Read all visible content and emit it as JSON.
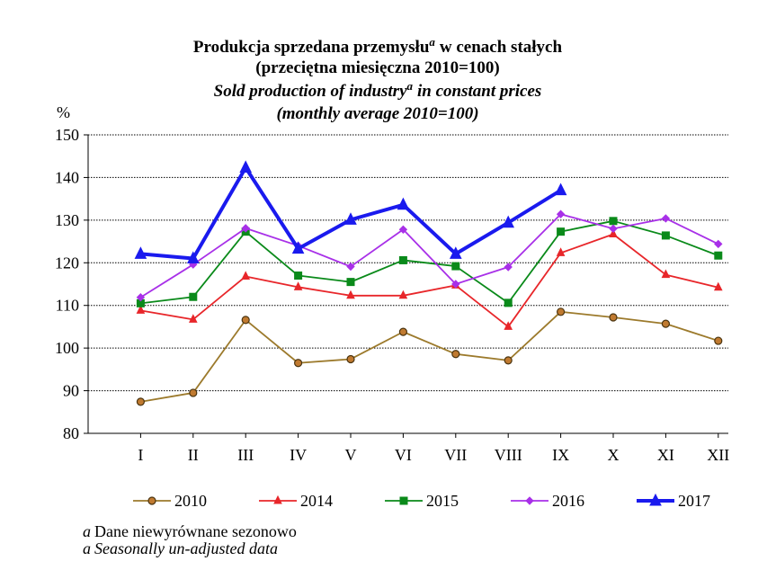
{
  "chart_data": {
    "type": "line",
    "title_pl": {
      "text": "Produkcja sprzedana przemysłu",
      "sup": "a",
      "rest": "w cenach stałych"
    },
    "subtitle_pl": "(przeciętna miesięczna 2010=100)",
    "title_en": {
      "text": "Sold production of industry",
      "sup": "a",
      "rest": "in constant prices"
    },
    "subtitle_en": "(monthly average 2010=100)",
    "y_label": "%",
    "categories": [
      "I",
      "II",
      "III",
      "IV",
      "V",
      "VI",
      "VII",
      "VIII",
      "IX",
      "X",
      "XI",
      "XII"
    ],
    "ylim": [
      80,
      150
    ],
    "yticks": [
      80,
      90,
      100,
      110,
      120,
      130,
      140,
      150
    ],
    "grid": true,
    "series": [
      {
        "name": "2010",
        "color": "#9c7a2c",
        "marker": "circle",
        "values": [
          87.4,
          89.5,
          106.6,
          96.5,
          97.4,
          103.8,
          98.6,
          97.1,
          108.5,
          107.2,
          105.7,
          101.7
        ]
      },
      {
        "name": "2014",
        "color": "#e8262a",
        "marker": "triangle",
        "values": [
          108.8,
          106.7,
          116.8,
          114.3,
          112.3,
          112.3,
          114.7,
          105.0,
          122.3,
          126.7,
          117.2,
          114.2
        ]
      },
      {
        "name": "2015",
        "color": "#0a8a1a",
        "marker": "square",
        "values": [
          110.5,
          112.0,
          127.3,
          117.0,
          115.5,
          120.6,
          119.2,
          110.6,
          127.3,
          129.8,
          126.4,
          121.7
        ]
      },
      {
        "name": "2016",
        "color": "#a830e8",
        "marker": "diamond",
        "values": [
          111.9,
          119.6,
          128.1,
          124.0,
          119.1,
          127.8,
          115.0,
          119.0,
          131.4,
          128.0,
          130.4,
          124.4
        ]
      },
      {
        "name": "2017",
        "color": "#1a1aee",
        "marker": "triangle",
        "width": 4,
        "values": [
          122.1,
          121.0,
          142.3,
          123.3,
          130.1,
          133.6,
          122.1,
          129.4,
          137.0,
          null,
          null,
          null
        ]
      }
    ],
    "footnote": [
      {
        "sup": "a",
        "text": "Dane niewyrównane sezonowo"
      },
      {
        "sup": "a",
        "text": "Seasonally un-adjusted data"
      }
    ]
  }
}
